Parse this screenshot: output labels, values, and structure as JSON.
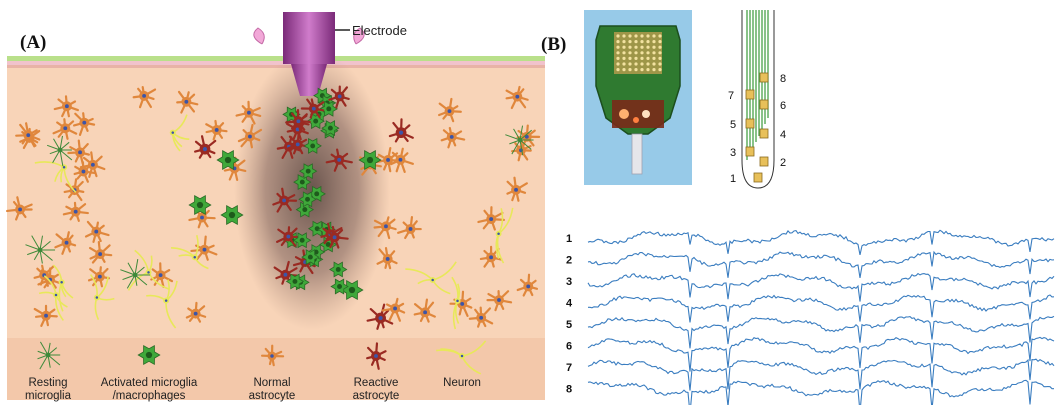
{
  "panel_a": {
    "label": "(A)",
    "electrode_label": "Electrode",
    "legend": [
      {
        "name": "resting-microglia",
        "lines": [
          "Resting",
          "microglia"
        ]
      },
      {
        "name": "activated-microglia",
        "lines": [
          "Activated microglia",
          "/macrophages"
        ]
      },
      {
        "name": "normal-astrocyte",
        "lines": [
          "Normal",
          "astrocyte"
        ]
      },
      {
        "name": "reactive-astrocyte",
        "lines": [
          "Reactive",
          "astrocyte"
        ]
      },
      {
        "name": "neuron",
        "lines": [
          "Neuron"
        ]
      }
    ]
  },
  "panel_b": {
    "label": "(B)",
    "probe_sites": [
      "1",
      "2",
      "3",
      "4",
      "5",
      "6",
      "7",
      "8"
    ],
    "traces": [
      "1",
      "2",
      "3",
      "4",
      "5",
      "6",
      "7",
      "8"
    ]
  },
  "colors": {
    "tissue": "#f8d4b8",
    "surface_green": "#b9e08a",
    "surface_pink": "#f1c3cc",
    "electrode": "#a0479a",
    "normal_astrocyte": "#e0873c",
    "reactive_astrocyte": "#9a2a22",
    "microglia": "#3e8a3a",
    "activated_microglia": "#3fa83a",
    "neuron": "#e8e85a",
    "nucleus": "#3c55a8",
    "trace": "#3a7dc0",
    "photo_bg": "#8cc3e4",
    "pcb": "#2f7a30"
  }
}
